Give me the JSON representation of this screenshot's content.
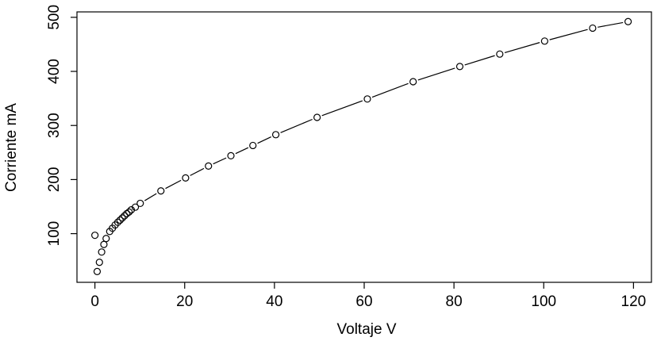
{
  "chart_data": {
    "type": "scatter",
    "title": "",
    "xlabel": "Voltaje V",
    "ylabel": "Corriente mA",
    "xlim": [
      -4,
      124
    ],
    "ylim": [
      10,
      510
    ],
    "xticks": [
      0,
      20,
      40,
      60,
      80,
      100,
      120
    ],
    "yticks": [
      100,
      200,
      300,
      400,
      500
    ],
    "grid": false,
    "legend": "none",
    "line_style": "dashed",
    "colors": {
      "points": "#000000",
      "line": "#000000"
    },
    "x": [
      0,
      0.5,
      1.0,
      1.5,
      2.0,
      2.5,
      3.3,
      3.9,
      4.5,
      5.1,
      5.6,
      6.1,
      6.6,
      7.1,
      7.6,
      8.1,
      9.0,
      10.1,
      14.7,
      20.2,
      25.3,
      30.3,
      35.2,
      40.3,
      49.5,
      60.7,
      70.9,
      81.3,
      90.2,
      100.2,
      110.9,
      118.8
    ],
    "y": [
      97,
      30,
      47,
      66,
      80,
      91,
      104,
      110,
      116,
      121,
      125,
      129,
      133,
      137,
      140,
      144,
      149,
      156,
      179,
      203,
      225,
      244,
      263,
      283,
      315,
      349,
      381,
      409,
      432,
      456,
      480,
      492
    ]
  }
}
